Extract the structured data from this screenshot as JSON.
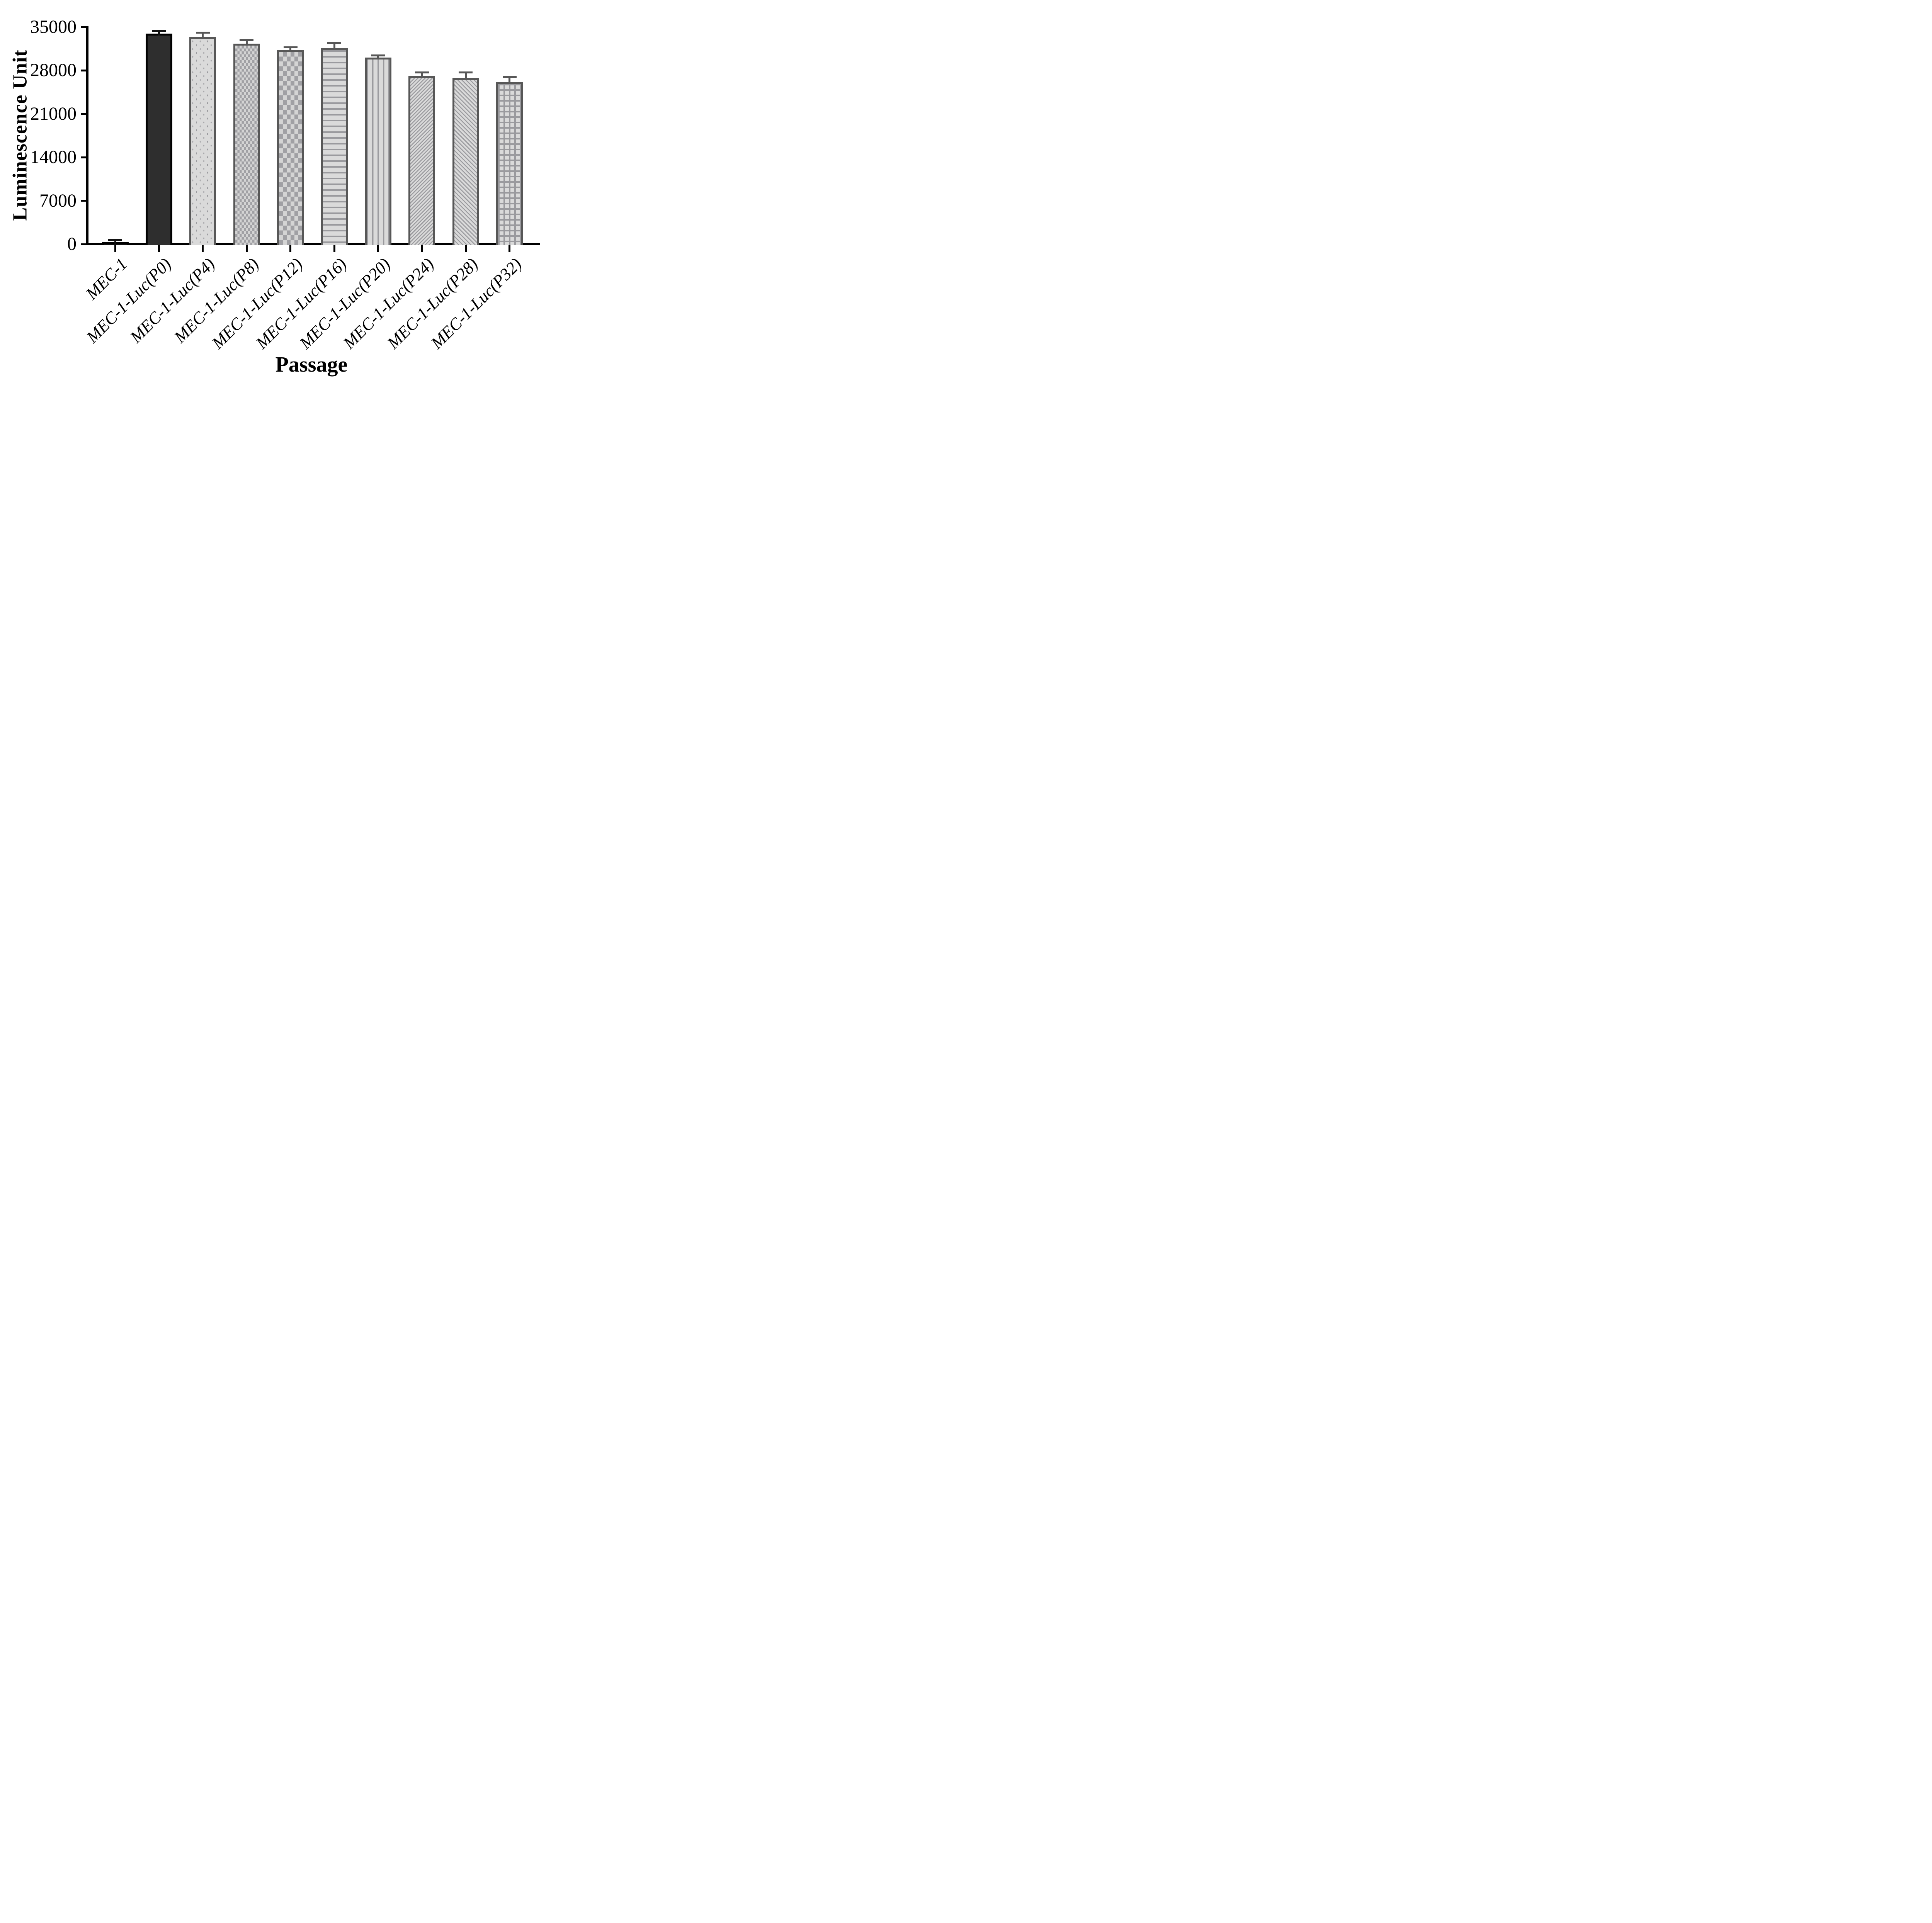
{
  "chart_data": {
    "type": "bar",
    "title": "",
    "xlabel": "Passage",
    "ylabel": "Luminescence Unit",
    "ylim": [
      0,
      35000
    ],
    "yticks": [
      0,
      7000,
      14000,
      21000,
      28000,
      35000
    ],
    "grid": false,
    "legend_position": "none",
    "categories": [
      "MEC-1",
      "MEC-1-Luc(P0)",
      "MEC-1-Luc(P4)",
      "MEC-1-Luc(P8)",
      "MEC-1-Luc(P12)",
      "MEC-1-Luc(P16)",
      "MEC-1-Luc(P20)",
      "MEC-1-Luc(P24)",
      "MEC-1-Luc(P28)",
      "MEC-1-Luc(P32)"
    ],
    "series": [
      {
        "name": "Luminescence Unit",
        "values": [
          350,
          33950,
          33350,
          32300,
          31300,
          31550,
          30050,
          27100,
          26750,
          26150
        ],
        "errors_plus": [
          150,
          250,
          600,
          450,
          300,
          700,
          200,
          400,
          800,
          600
        ]
      }
    ],
    "bar_patterns": [
      "solid-black",
      "solid-black",
      "dots",
      "checker-small",
      "checker-large",
      "horizontal-lines",
      "vertical-lines",
      "diagonal-up",
      "diagonal-down",
      "grid"
    ],
    "colors": {
      "bar1_fill": "#111111",
      "bar2_fill": "#2e2e2e",
      "solid_border": "#000000",
      "solid_error": "#111111",
      "pattern_border": "#575757",
      "pattern_error": "#575757",
      "pattern_line": "#9a9a9e",
      "pattern_fill": "#dadada",
      "axis": "#000000"
    }
  }
}
